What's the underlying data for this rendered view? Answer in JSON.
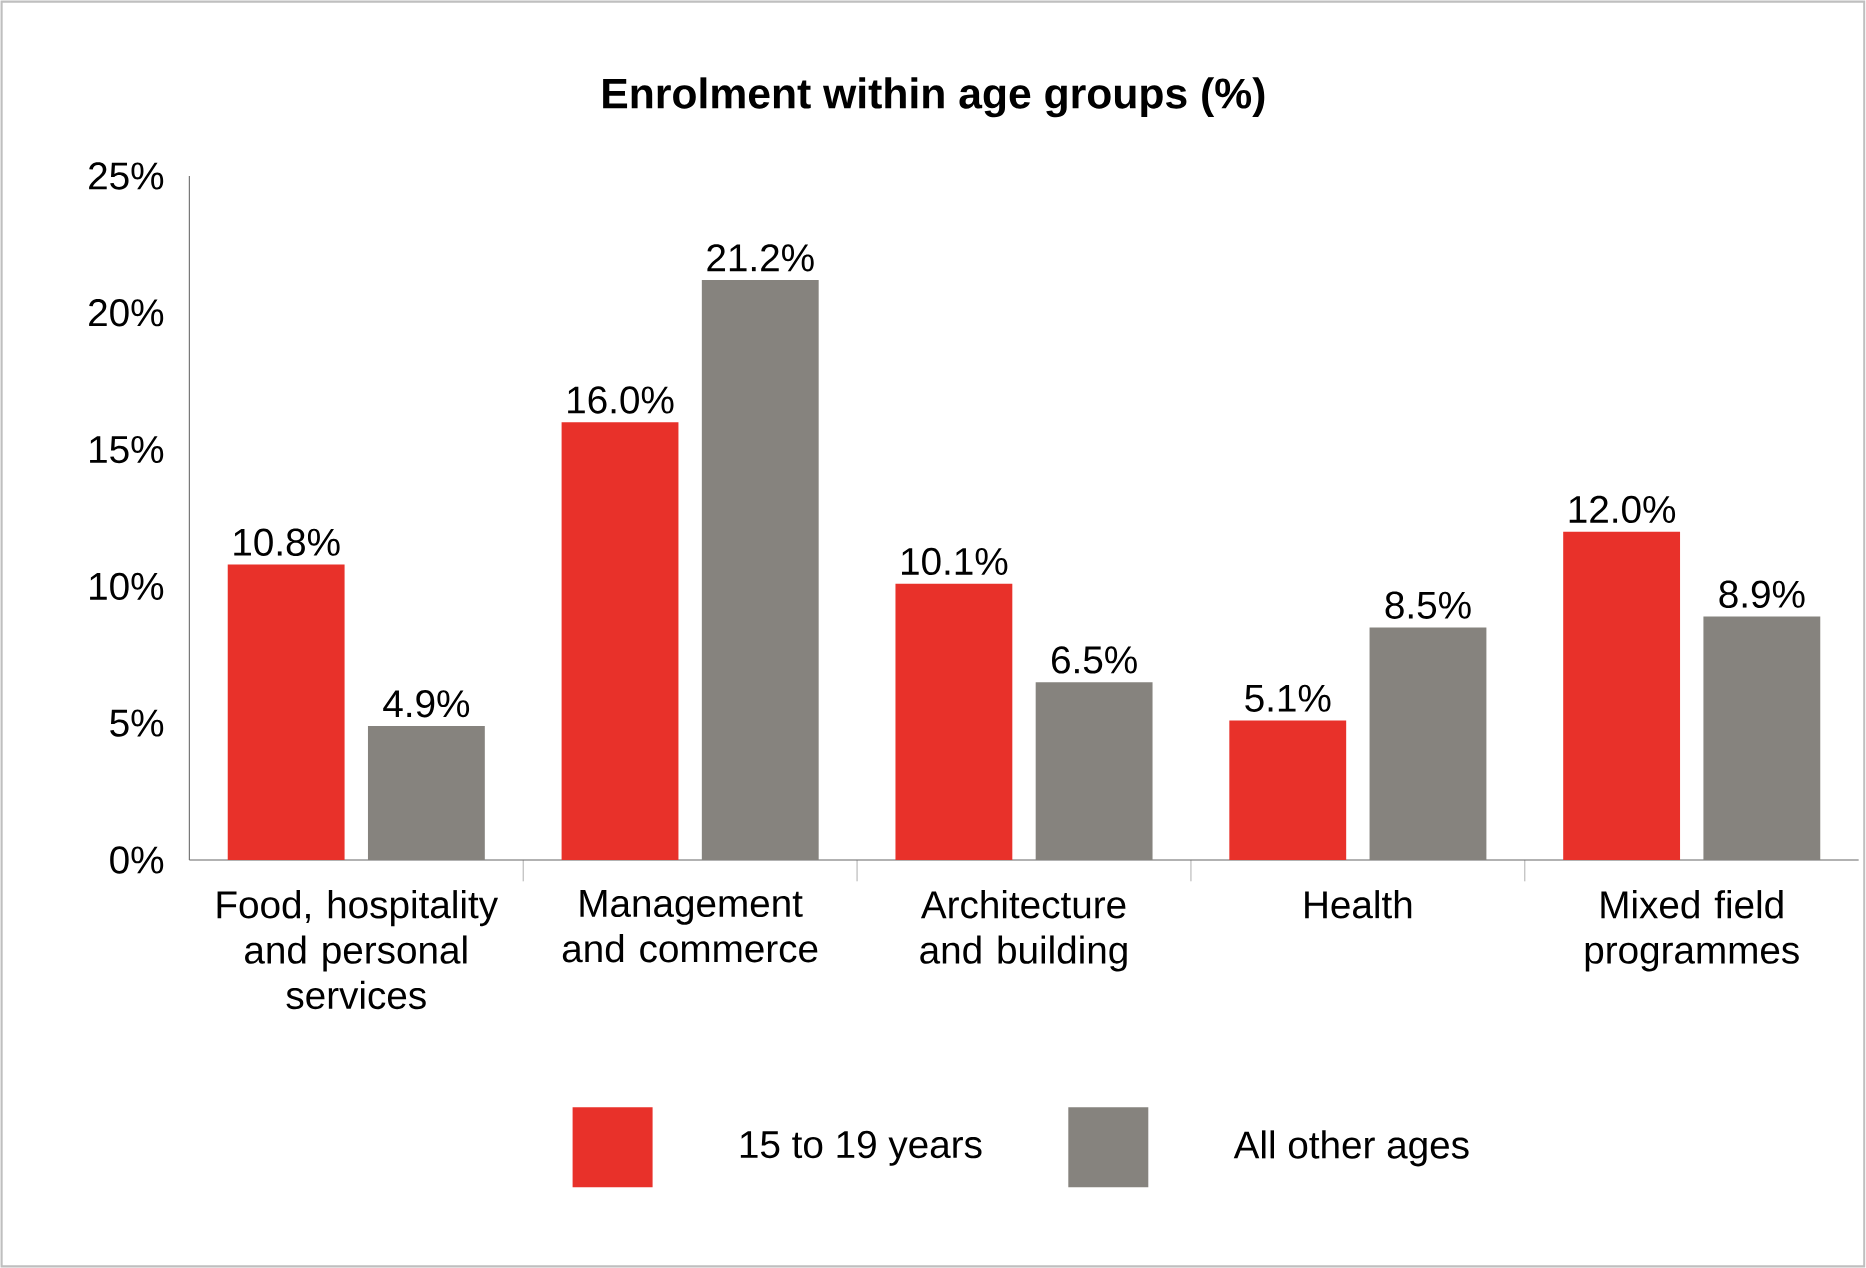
{
  "chart_data": {
    "type": "bar",
    "title": "Enrolment within age groups (%)",
    "categories": [
      "Food, hospitality and personal services",
      "Management and commerce",
      "Architecture and building",
      "Health",
      "Mixed field programmes"
    ],
    "series": [
      {
        "name": "15 to 19 years",
        "color": "#e8312a",
        "values": [
          10.8,
          16.0,
          10.1,
          5.1,
          12.0
        ],
        "value_labels": [
          "10.8%",
          "16.0%",
          "10.1%",
          "5.1%",
          "12.0%"
        ]
      },
      {
        "name": "All other ages",
        "color": "#86837e",
        "values": [
          4.9,
          21.2,
          6.5,
          8.5,
          8.9
        ],
        "value_labels": [
          "4.9%",
          "21.2%",
          "6.5%",
          "8.5%",
          "8.9%"
        ]
      }
    ],
    "ylim": [
      0,
      25
    ],
    "yticks": [
      {
        "value": 0,
        "label": "0%"
      },
      {
        "value": 5,
        "label": "5%"
      },
      {
        "value": 10,
        "label": "10%"
      },
      {
        "value": 15,
        "label": "15%"
      },
      {
        "value": 20,
        "label": "20%"
      },
      {
        "value": 25,
        "label": "25%"
      }
    ],
    "grid": false,
    "legend": "bottom"
  }
}
